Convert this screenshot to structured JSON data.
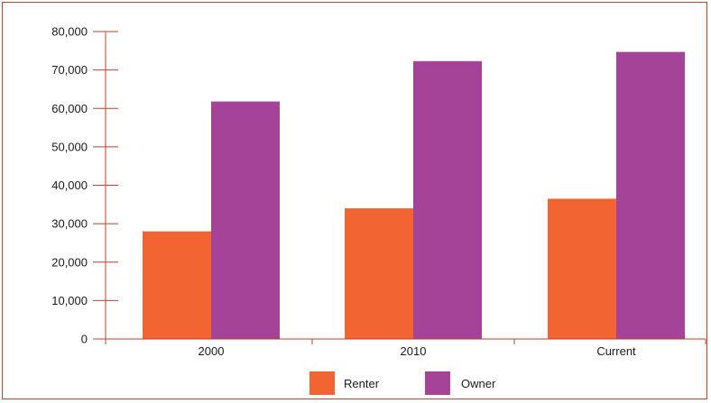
{
  "chart_data": {
    "type": "bar",
    "title": "",
    "xlabel": "",
    "ylabel": "",
    "categories": [
      "2000",
      "2010",
      "Current"
    ],
    "series": [
      {
        "name": "Renter",
        "values": [
          28000,
          34000,
          36500
        ],
        "color": "#f26533"
      },
      {
        "name": "Owner",
        "values": [
          61800,
          72300,
          74700
        ],
        "color": "#a54399"
      }
    ],
    "ylim": [
      0,
      80000
    ],
    "yticks": [
      0,
      10000,
      20000,
      30000,
      40000,
      50000,
      60000,
      70000,
      80000
    ],
    "ytick_labels": [
      "0",
      "10,000",
      "20,000",
      "30,000",
      "40,000",
      "50,000",
      "60,000",
      "70,000",
      "80,000"
    ],
    "grid": false,
    "axis_color": "#b5452b",
    "legend": {
      "position": "bottom-center"
    }
  }
}
